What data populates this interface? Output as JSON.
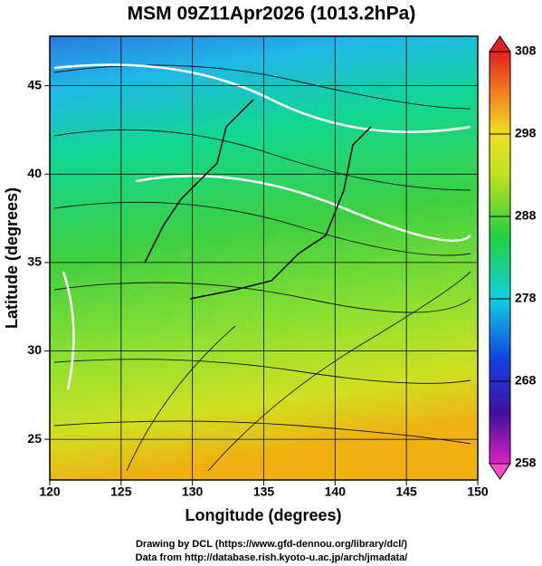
{
  "map": {
    "title": "MSM 09Z11Apr2026 (1013.2hPa)",
    "x_axis": {
      "label": "Longitude (degrees)",
      "lim": [
        120,
        150
      ],
      "ticks": [
        120,
        125,
        130,
        135,
        140,
        145,
        150
      ]
    },
    "y_axis": {
      "label": "Latitude  (degrees)",
      "lim": [
        22.7,
        47.8
      ],
      "ticks": [
        25,
        30,
        35,
        40,
        45
      ]
    },
    "colorbar": {
      "lim": [
        258,
        308
      ],
      "ticks": [
        258,
        268,
        278,
        288,
        298,
        308
      ]
    },
    "credits": [
      "Drawing by DCL (https://www.gfd-dennou.org/library/dcl/)",
      "Data from http://database.rish.kyoto-u.ac.jp/arch/jmadata/"
    ]
  }
}
